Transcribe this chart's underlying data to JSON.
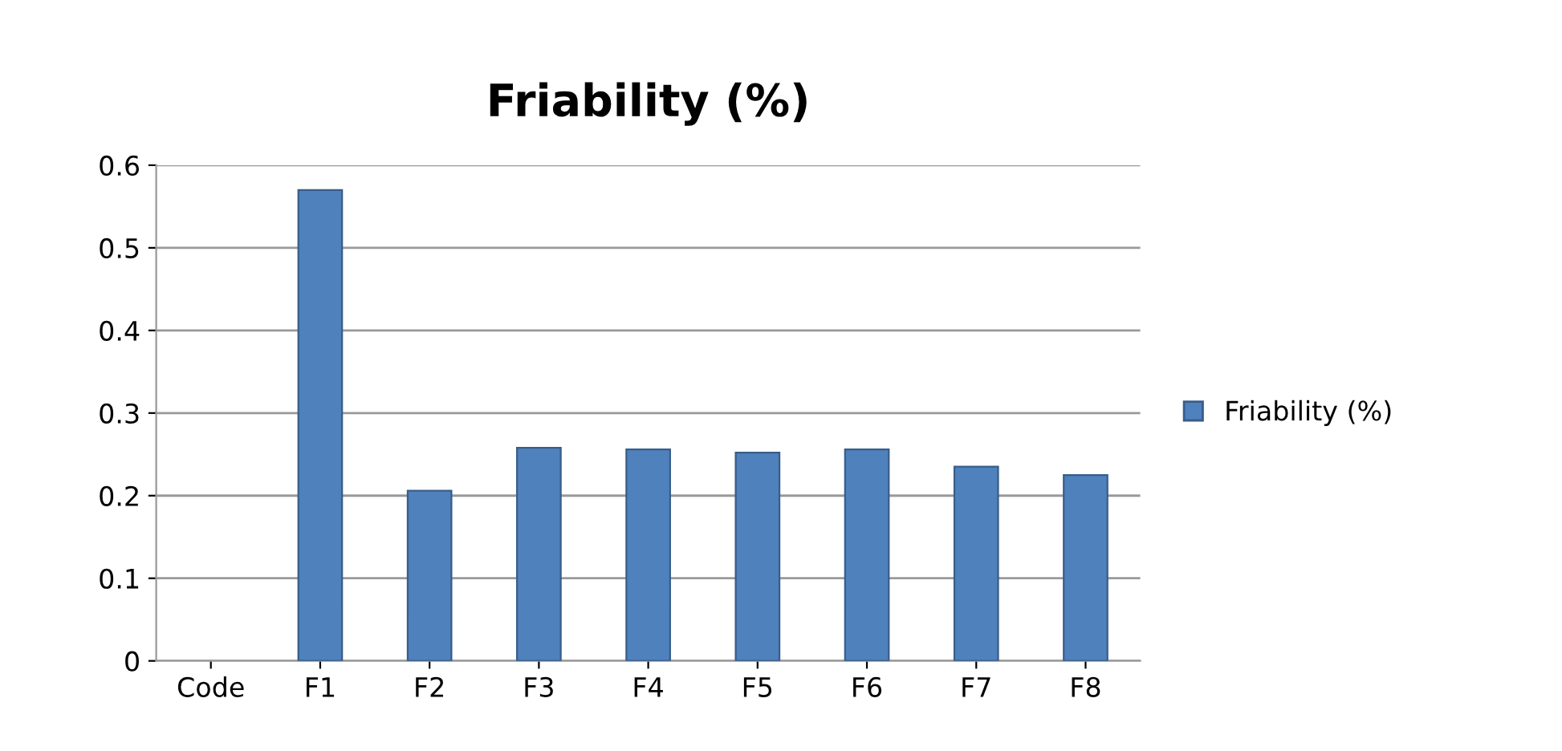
{
  "chart_data": {
    "type": "bar",
    "title": "Friability (%)",
    "categories": [
      "Code",
      "F1",
      "F2",
      "F3",
      "F4",
      "F5",
      "F6",
      "F7",
      "F8"
    ],
    "series": [
      {
        "name": "Friability (%)",
        "color": "#4f81bd",
        "values": [
          null,
          0.57,
          0.206,
          0.258,
          0.256,
          0.252,
          0.256,
          0.235,
          0.225
        ]
      }
    ],
    "ylim": [
      0,
      0.6
    ],
    "yticks": [
      0,
      0.1,
      0.2,
      0.3,
      0.4,
      0.5,
      0.6
    ],
    "grid": "y",
    "legend": "right"
  }
}
